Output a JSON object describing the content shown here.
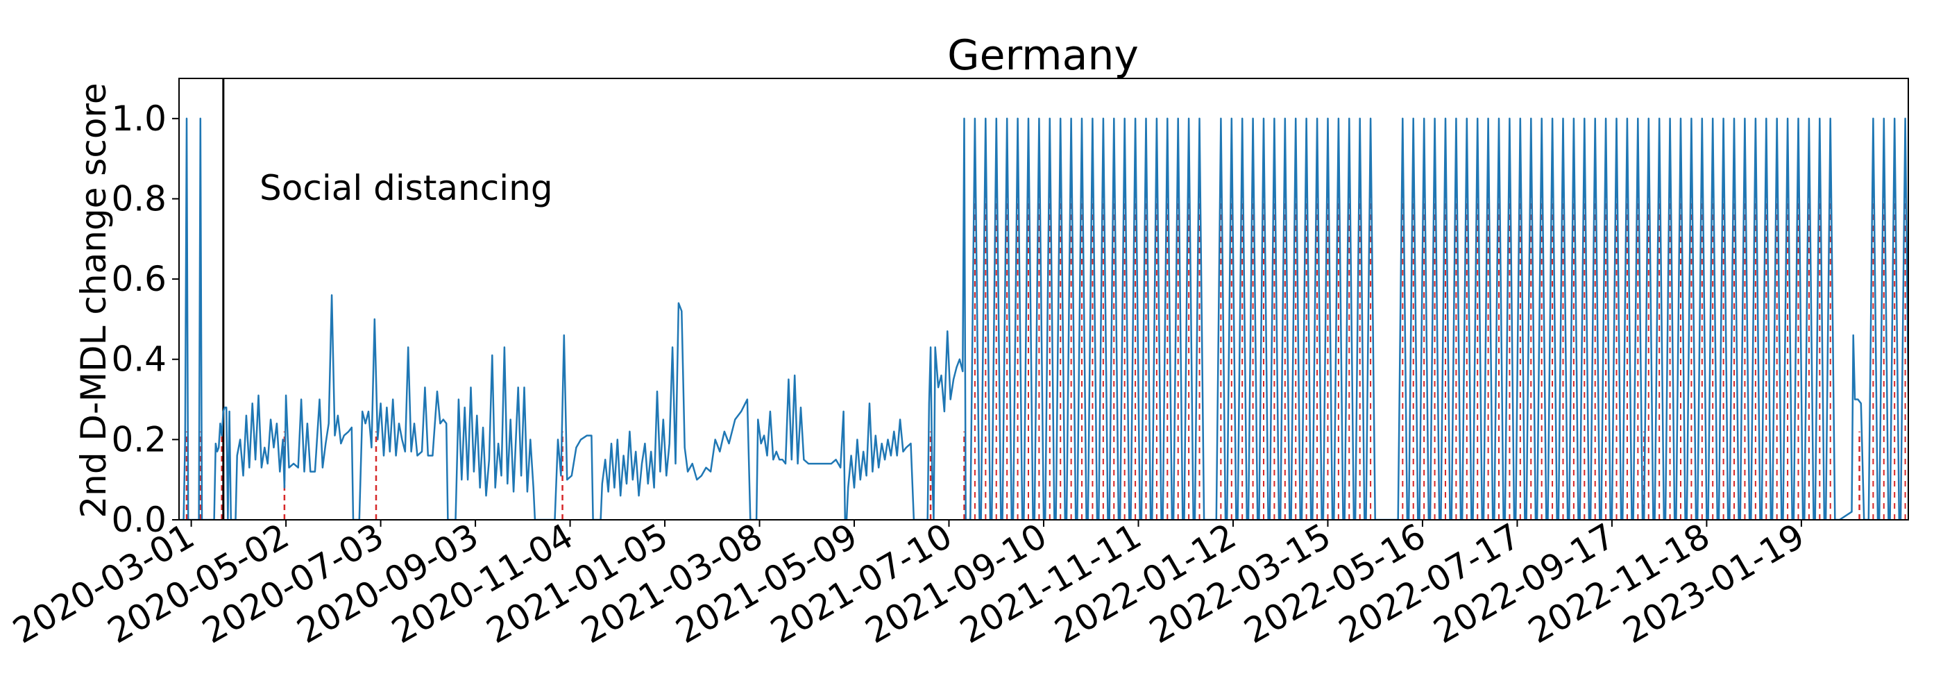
{
  "chart_data": {
    "type": "line",
    "title": "Germany",
    "xlabel": "",
    "ylabel": "2nd D-MDL change score",
    "x_axis": {
      "type": "date",
      "range": [
        "2020-02-22",
        "2023-03-30"
      ],
      "tick_labels": [
        "2020-03-01",
        "2020-05-02",
        "2020-07-03",
        "2020-09-03",
        "2020-11-04",
        "2021-01-05",
        "2021-03-08",
        "2021-05-09",
        "2021-07-10",
        "2021-09-10",
        "2021-11-11",
        "2022-01-12",
        "2022-03-15",
        "2022-05-16",
        "2022-07-17",
        "2022-09-17",
        "2022-11-18",
        "2023-01-19"
      ]
    },
    "ylim": [
      0,
      1.1
    ],
    "yticks": [
      0.0,
      0.2,
      0.4,
      0.6,
      0.8,
      1.0
    ],
    "ytick_labels": [
      "0.0",
      "0.2",
      "0.4",
      "0.6",
      "0.8",
      "1.0"
    ],
    "grid": false,
    "line_color": "#1f77b4",
    "alarm_color": "#d62728",
    "event_color": "#000000",
    "annotations": [
      {
        "date": "2020-03-22",
        "label": "Social distancing"
      }
    ],
    "alarms": [
      "2020-02-27",
      "2020-03-07",
      "2020-03-21",
      "2020-05-01",
      "2020-06-30",
      "2020-10-30",
      "2021-06-28",
      "2021-07-20",
      "2022-10-08",
      "2023-02-26"
    ],
    "series": [
      {
        "values": [
          [
            "2020-02-22",
            0.0
          ],
          [
            "2020-02-25",
            0.0
          ],
          [
            "2020-02-26",
            0.2
          ],
          [
            "2020-02-27",
            1.0
          ],
          [
            "2020-02-28",
            0.0
          ],
          [
            "2020-03-06",
            0.0
          ],
          [
            "2020-03-07",
            1.0
          ],
          [
            "2020-03-08",
            0.0
          ],
          [
            "2020-03-16",
            0.0
          ],
          [
            "2020-03-17",
            0.19
          ],
          [
            "2020-03-18",
            0.17
          ],
          [
            "2020-03-19",
            0.18
          ],
          [
            "2020-03-20",
            0.24
          ],
          [
            "2020-03-21",
            0.21
          ],
          [
            "2020-03-22",
            0.27
          ],
          [
            "2020-03-23",
            0.28
          ],
          [
            "2020-03-24",
            0.28
          ],
          [
            "2020-03-25",
            0.0
          ],
          [
            "2020-03-26",
            0.27
          ],
          [
            "2020-03-27",
            0.0
          ],
          [
            "2020-03-30",
            0.0
          ],
          [
            "2020-03-31",
            0.16
          ],
          [
            "2020-04-02",
            0.2
          ],
          [
            "2020-04-04",
            0.11
          ],
          [
            "2020-04-06",
            0.26
          ],
          [
            "2020-04-08",
            0.13
          ],
          [
            "2020-04-10",
            0.29
          ],
          [
            "2020-04-12",
            0.15
          ],
          [
            "2020-04-14",
            0.31
          ],
          [
            "2020-04-16",
            0.13
          ],
          [
            "2020-04-18",
            0.18
          ],
          [
            "2020-04-20",
            0.14
          ],
          [
            "2020-04-22",
            0.25
          ],
          [
            "2020-04-24",
            0.18
          ],
          [
            "2020-04-26",
            0.24
          ],
          [
            "2020-04-28",
            0.12
          ],
          [
            "2020-04-30",
            0.2
          ],
          [
            "2020-05-01",
            0.08
          ],
          [
            "2020-05-02",
            0.31
          ],
          [
            "2020-05-04",
            0.13
          ],
          [
            "2020-05-07",
            0.14
          ],
          [
            "2020-05-10",
            0.13
          ],
          [
            "2020-05-12",
            0.3
          ],
          [
            "2020-05-14",
            0.12
          ],
          [
            "2020-05-16",
            0.24
          ],
          [
            "2020-05-18",
            0.12
          ],
          [
            "2020-05-21",
            0.12
          ],
          [
            "2020-05-24",
            0.3
          ],
          [
            "2020-05-26",
            0.13
          ],
          [
            "2020-05-28",
            0.19
          ],
          [
            "2020-05-30",
            0.24
          ],
          [
            "2020-06-01",
            0.56
          ],
          [
            "2020-06-03",
            0.21
          ],
          [
            "2020-06-05",
            0.26
          ],
          [
            "2020-06-07",
            0.19
          ],
          [
            "2020-06-09",
            0.21
          ],
          [
            "2020-06-12",
            0.22
          ],
          [
            "2020-06-14",
            0.23
          ],
          [
            "2020-06-15",
            0.0
          ],
          [
            "2020-06-19",
            0.0
          ],
          [
            "2020-06-21",
            0.27
          ],
          [
            "2020-06-23",
            0.24
          ],
          [
            "2020-06-25",
            0.27
          ],
          [
            "2020-06-27",
            0.18
          ],
          [
            "2020-06-29",
            0.5
          ],
          [
            "2020-07-01",
            0.2
          ],
          [
            "2020-07-03",
            0.29
          ],
          [
            "2020-07-05",
            0.16
          ],
          [
            "2020-07-07",
            0.28
          ],
          [
            "2020-07-09",
            0.17
          ],
          [
            "2020-07-11",
            0.3
          ],
          [
            "2020-07-13",
            0.16
          ],
          [
            "2020-07-15",
            0.24
          ],
          [
            "2020-07-17",
            0.2
          ],
          [
            "2020-07-19",
            0.17
          ],
          [
            "2020-07-21",
            0.43
          ],
          [
            "2020-07-23",
            0.17
          ],
          [
            "2020-07-25",
            0.24
          ],
          [
            "2020-07-27",
            0.16
          ],
          [
            "2020-07-30",
            0.17
          ],
          [
            "2020-08-01",
            0.33
          ],
          [
            "2020-08-03",
            0.16
          ],
          [
            "2020-08-06",
            0.16
          ],
          [
            "2020-08-09",
            0.32
          ],
          [
            "2020-08-11",
            0.24
          ],
          [
            "2020-08-13",
            0.25
          ],
          [
            "2020-08-15",
            0.24
          ],
          [
            "2020-08-16",
            0.0
          ],
          [
            "2020-08-21",
            0.0
          ],
          [
            "2020-08-23",
            0.3
          ],
          [
            "2020-08-25",
            0.1
          ],
          [
            "2020-08-27",
            0.28
          ],
          [
            "2020-08-29",
            0.1
          ],
          [
            "2020-08-31",
            0.33
          ],
          [
            "2020-09-02",
            0.12
          ],
          [
            "2020-09-04",
            0.26
          ],
          [
            "2020-09-06",
            0.08
          ],
          [
            "2020-09-08",
            0.23
          ],
          [
            "2020-09-10",
            0.06
          ],
          [
            "2020-09-12",
            0.15
          ],
          [
            "2020-09-14",
            0.41
          ],
          [
            "2020-09-16",
            0.08
          ],
          [
            "2020-09-18",
            0.19
          ],
          [
            "2020-09-20",
            0.11
          ],
          [
            "2020-09-22",
            0.43
          ],
          [
            "2020-09-24",
            0.09
          ],
          [
            "2020-09-26",
            0.25
          ],
          [
            "2020-09-28",
            0.07
          ],
          [
            "2020-10-01",
            0.33
          ],
          [
            "2020-10-03",
            0.11
          ],
          [
            "2020-10-05",
            0.33
          ],
          [
            "2020-10-07",
            0.07
          ],
          [
            "2020-10-09",
            0.2
          ],
          [
            "2020-10-11",
            0.08
          ],
          [
            "2020-10-12",
            0.0
          ],
          [
            "2020-10-25",
            0.0
          ],
          [
            "2020-10-27",
            0.2
          ],
          [
            "2020-10-29",
            0.11
          ],
          [
            "2020-10-31",
            0.46
          ],
          [
            "2020-11-02",
            0.1
          ],
          [
            "2020-11-05",
            0.11
          ],
          [
            "2020-11-08",
            0.18
          ],
          [
            "2020-11-11",
            0.2
          ],
          [
            "2020-11-15",
            0.21
          ],
          [
            "2020-11-18",
            0.21
          ],
          [
            "2020-11-19",
            0.0
          ],
          [
            "2020-11-24",
            0.0
          ],
          [
            "2020-11-25",
            0.09
          ],
          [
            "2020-11-27",
            0.15
          ],
          [
            "2020-11-29",
            0.07
          ],
          [
            "2020-12-01",
            0.19
          ],
          [
            "2020-12-03",
            0.08
          ],
          [
            "2020-12-05",
            0.2
          ],
          [
            "2020-12-07",
            0.06
          ],
          [
            "2020-12-09",
            0.16
          ],
          [
            "2020-12-11",
            0.09
          ],
          [
            "2020-12-13",
            0.22
          ],
          [
            "2020-12-15",
            0.1
          ],
          [
            "2020-12-17",
            0.17
          ],
          [
            "2020-12-19",
            0.06
          ],
          [
            "2020-12-21",
            0.14
          ],
          [
            "2020-12-23",
            0.19
          ],
          [
            "2020-12-25",
            0.09
          ],
          [
            "2020-12-27",
            0.17
          ],
          [
            "2020-12-29",
            0.08
          ],
          [
            "2020-12-31",
            0.32
          ],
          [
            "2021-01-02",
            0.12
          ],
          [
            "2021-01-04",
            0.25
          ],
          [
            "2021-01-06",
            0.11
          ],
          [
            "2021-01-08",
            0.19
          ],
          [
            "2021-01-10",
            0.43
          ],
          [
            "2021-01-12",
            0.14
          ],
          [
            "2021-01-14",
            0.54
          ],
          [
            "2021-01-16",
            0.52
          ],
          [
            "2021-01-18",
            0.18
          ],
          [
            "2021-01-20",
            0.12
          ],
          [
            "2021-01-23",
            0.14
          ],
          [
            "2021-01-26",
            0.1
          ],
          [
            "2021-01-29",
            0.11
          ],
          [
            "2021-02-01",
            0.13
          ],
          [
            "2021-02-04",
            0.12
          ],
          [
            "2021-02-07",
            0.2
          ],
          [
            "2021-02-10",
            0.17
          ],
          [
            "2021-02-13",
            0.22
          ],
          [
            "2021-02-16",
            0.19
          ],
          [
            "2021-02-20",
            0.25
          ],
          [
            "2021-02-24",
            0.27
          ],
          [
            "2021-02-28",
            0.3
          ],
          [
            "2021-03-02",
            0.0
          ],
          [
            "2021-03-06",
            0.0
          ],
          [
            "2021-03-07",
            0.25
          ],
          [
            "2021-03-09",
            0.19
          ],
          [
            "2021-03-11",
            0.21
          ],
          [
            "2021-03-13",
            0.16
          ],
          [
            "2021-03-15",
            0.27
          ],
          [
            "2021-03-17",
            0.15
          ],
          [
            "2021-03-19",
            0.17
          ],
          [
            "2021-03-21",
            0.15
          ],
          [
            "2021-03-23",
            0.15
          ],
          [
            "2021-03-25",
            0.14
          ],
          [
            "2021-03-27",
            0.35
          ],
          [
            "2021-03-29",
            0.15
          ],
          [
            "2021-03-31",
            0.36
          ],
          [
            "2021-04-02",
            0.14
          ],
          [
            "2021-04-04",
            0.28
          ],
          [
            "2021-04-06",
            0.15
          ],
          [
            "2021-04-09",
            0.14
          ],
          [
            "2021-04-12",
            0.14
          ],
          [
            "2021-04-15",
            0.14
          ],
          [
            "2021-04-18",
            0.14
          ],
          [
            "2021-04-21",
            0.14
          ],
          [
            "2021-04-24",
            0.14
          ],
          [
            "2021-04-27",
            0.15
          ],
          [
            "2021-04-30",
            0.13
          ],
          [
            "2021-05-02",
            0.27
          ],
          [
            "2021-05-03",
            0.0
          ],
          [
            "2021-05-04",
            0.0
          ],
          [
            "2021-05-05",
            0.08
          ],
          [
            "2021-05-07",
            0.16
          ],
          [
            "2021-05-09",
            0.08
          ],
          [
            "2021-05-11",
            0.2
          ],
          [
            "2021-05-13",
            0.1
          ],
          [
            "2021-05-15",
            0.17
          ],
          [
            "2021-05-17",
            0.11
          ],
          [
            "2021-05-19",
            0.29
          ],
          [
            "2021-05-21",
            0.12
          ],
          [
            "2021-05-23",
            0.21
          ],
          [
            "2021-05-25",
            0.13
          ],
          [
            "2021-05-27",
            0.19
          ],
          [
            "2021-05-29",
            0.15
          ],
          [
            "2021-05-31",
            0.2
          ],
          [
            "2021-06-02",
            0.16
          ],
          [
            "2021-06-04",
            0.22
          ],
          [
            "2021-06-06",
            0.16
          ],
          [
            "2021-06-08",
            0.25
          ],
          [
            "2021-06-10",
            0.17
          ],
          [
            "2021-06-12",
            0.18
          ],
          [
            "2021-06-15",
            0.19
          ],
          [
            "2021-06-17",
            0.0
          ],
          [
            "2021-06-26",
            0.0
          ],
          [
            "2021-06-27",
            0.29
          ],
          [
            "2021-06-28",
            0.43
          ],
          [
            "2021-06-29",
            0.12
          ],
          [
            "2021-06-30",
            0.0
          ],
          [
            "2021-07-01",
            0.43
          ],
          [
            "2021-07-03",
            0.33
          ],
          [
            "2021-07-05",
            0.36
          ],
          [
            "2021-07-07",
            0.27
          ],
          [
            "2021-07-09",
            0.47
          ],
          [
            "2021-07-11",
            0.3
          ],
          [
            "2021-07-13",
            0.35
          ],
          [
            "2021-07-15",
            0.38
          ],
          [
            "2021-07-17",
            0.4
          ],
          [
            "2021-07-19",
            0.37
          ],
          [
            "2021-07-20",
            1.0
          ],
          [
            "2021-07-21",
            0.0
          ]
        ]
      }
    ],
    "periodic_spikes": {
      "value": 1.0,
      "dates": [
        "2021-07-27",
        "2021-08-03",
        "2021-08-10",
        "2021-08-17",
        "2021-08-24",
        "2021-08-31",
        "2021-09-07",
        "2021-09-14",
        "2021-09-21",
        "2021-09-28",
        "2021-10-05",
        "2021-10-12",
        "2021-10-19",
        "2021-10-26",
        "2021-11-02",
        "2021-11-09",
        "2021-11-16",
        "2021-11-23",
        "2021-11-30",
        "2021-12-07",
        "2021-12-14",
        "2021-12-21",
        "2022-01-04",
        "2022-01-11",
        "2022-01-18",
        "2022-01-25",
        "2022-02-01",
        "2022-02-08",
        "2022-02-15",
        "2022-02-22",
        "2022-03-01",
        "2022-03-08",
        "2022-03-15",
        "2022-03-22",
        "2022-03-29",
        "2022-04-05",
        "2022-04-12",
        "2022-05-03",
        "2022-05-10",
        "2022-05-17",
        "2022-05-24",
        "2022-05-31",
        "2022-06-07",
        "2022-06-14",
        "2022-06-21",
        "2022-06-28",
        "2022-07-05",
        "2022-07-12",
        "2022-07-19",
        "2022-07-26",
        "2022-08-02",
        "2022-08-09",
        "2022-08-16",
        "2022-08-23",
        "2022-08-30",
        "2022-09-06",
        "2022-09-13",
        "2022-09-20",
        "2022-09-27",
        "2022-10-04",
        "2022-10-11",
        "2022-10-18",
        "2022-10-25",
        "2022-11-01",
        "2022-11-08",
        "2022-11-15",
        "2022-11-22",
        "2022-11-29",
        "2022-12-06",
        "2022-12-13",
        "2022-12-20",
        "2022-12-27",
        "2023-01-03",
        "2023-01-10",
        "2023-01-17",
        "2023-01-24",
        "2023-01-31",
        "2023-02-07",
        "2023-03-07",
        "2023-03-14",
        "2023-03-21",
        "2023-03-28"
      ]
    },
    "extra_points": [
      [
        "2023-02-13",
        0.0
      ],
      [
        "2023-02-21",
        0.02
      ],
      [
        "2023-02-22",
        0.46
      ],
      [
        "2023-02-23",
        0.3
      ],
      [
        "2023-02-25",
        0.3
      ],
      [
        "2023-02-27",
        0.29
      ],
      [
        "2023-03-01",
        0.0
      ]
    ]
  }
}
